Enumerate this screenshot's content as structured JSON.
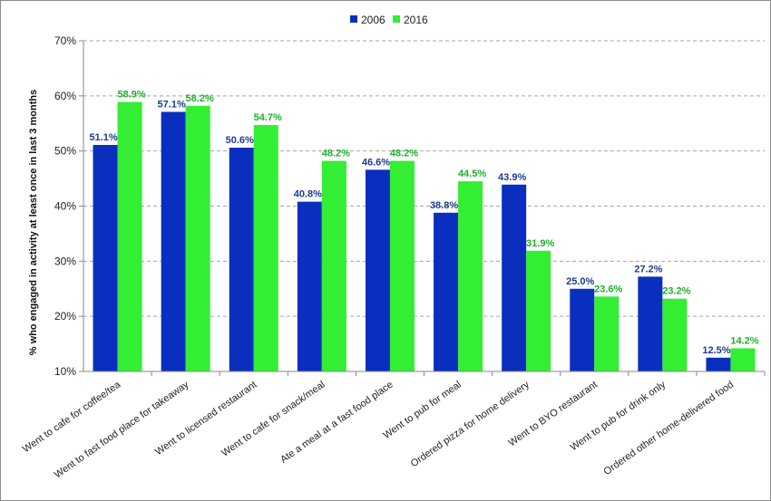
{
  "chart_data": {
    "type": "bar",
    "ylabel": "% who engaged in activity at least once in last 3 months",
    "ylim": [
      10,
      70
    ],
    "yticks": [
      "10%",
      "20%",
      "30%",
      "40%",
      "50%",
      "60%",
      "70%"
    ],
    "grid": true,
    "legend_position": "top-center",
    "categories": [
      "Went to cafe for coffee/tea",
      "Went to fast food place for takeaway",
      "Went to licensed restaurant",
      "Went to cafe for snack/meal",
      "Ate a meal at a fast food place",
      "Went to pub for meal",
      "Ordered pizza for home delivery",
      "Went to BYO restaurant",
      "Went to pub for drink only",
      "Ordered other home-delivered food"
    ],
    "series": [
      {
        "name": "2006",
        "color": "#0a2fbf",
        "label_color": "#1f3a93",
        "values": [
          51.1,
          57.1,
          50.6,
          40.8,
          46.6,
          38.8,
          43.9,
          25.0,
          27.2,
          12.5
        ],
        "labels": [
          "51.1%",
          "57.1%",
          "50.6%",
          "40.8%",
          "46.6%",
          "38.8%",
          "43.9%",
          "25.0%",
          "27.2%",
          "12.5%"
        ]
      },
      {
        "name": "2016",
        "color": "#33ee33",
        "label_color": "#1fb02a",
        "values": [
          58.9,
          58.2,
          54.7,
          48.2,
          48.2,
          44.5,
          31.9,
          23.6,
          23.2,
          14.2
        ],
        "labels": [
          "58.9%",
          "58.2%",
          "54.7%",
          "48.2%",
          "48.2%",
          "44.5%",
          "31.9%",
          "23.6%",
          "23.2%",
          "14.2%"
        ]
      }
    ]
  }
}
